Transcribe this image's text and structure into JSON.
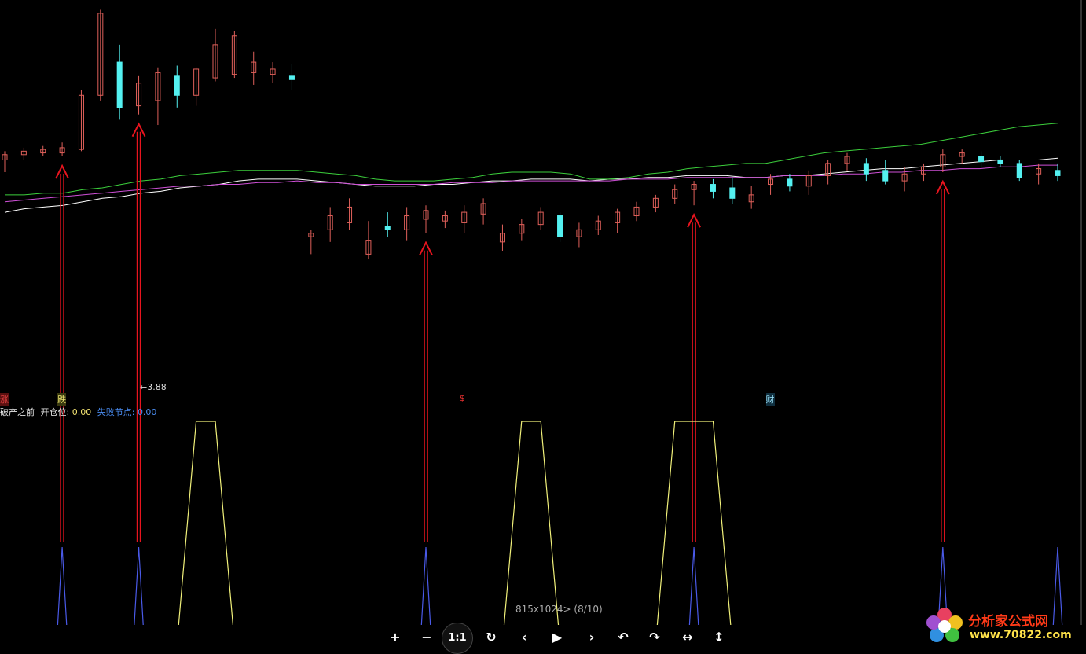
{
  "colors": {
    "up": "#e0605a",
    "down": "#54f1f1",
    "ma_white": "#ffffff",
    "ma_green": "#3ccf3c",
    "ma_magenta": "#d050d8",
    "arrow": "#e8141e",
    "osc_yellow": "#f0f07a",
    "osc_blue": "#4a5ae8",
    "info_white": "#e8e8e8",
    "info_yellow": "#f0e070",
    "info_blue": "#4a8cf0"
  },
  "price_annotation": "←3.88",
  "signal_labels": [
    {
      "text": "涨",
      "x": 0,
      "color": "#e04040",
      "bg": "#5a1010"
    },
    {
      "text": "跌",
      "x": 3,
      "color": "#e8e070",
      "bg": "#3a3a10"
    },
    {
      "text": "$",
      "x": 24,
      "color": "#e83030",
      "bg": ""
    },
    {
      "text": "财",
      "x": 40,
      "color": "#a0e8ff",
      "bg": "#103040"
    }
  ],
  "info_line": {
    "title": "破产之前",
    "open_label": "开仓位:",
    "open_value": "0.00",
    "fail_label": "失败节点:",
    "fail_value": "0.00"
  },
  "viewer": {
    "status": "815x1024> (8/10)",
    "buttons": [
      "+",
      "−",
      "1:1",
      "↻",
      "‹",
      "▶",
      "›",
      "↶",
      "↷",
      "↔",
      "↕"
    ]
  },
  "watermark": {
    "text": "分析家公式网",
    "url": "www.70822.com"
  },
  "chart_data": {
    "type": "candlestick",
    "ylim": [
      3.4,
      5.3
    ],
    "candles": [
      {
        "o": 4.42,
        "h": 4.47,
        "l": 4.35,
        "c": 4.45
      },
      {
        "o": 4.45,
        "h": 4.49,
        "l": 4.42,
        "c": 4.47
      },
      {
        "o": 4.46,
        "h": 4.5,
        "l": 4.44,
        "c": 4.48
      },
      {
        "o": 4.46,
        "h": 4.52,
        "l": 4.44,
        "c": 4.49
      },
      {
        "o": 4.48,
        "h": 4.82,
        "l": 4.47,
        "c": 4.79
      },
      {
        "o": 4.79,
        "h": 5.28,
        "l": 4.76,
        "c": 5.26
      },
      {
        "o": 4.98,
        "h": 5.08,
        "l": 4.65,
        "c": 4.72
      },
      {
        "o": 4.73,
        "h": 4.9,
        "l": 4.68,
        "c": 4.86
      },
      {
        "o": 4.76,
        "h": 4.95,
        "l": 4.62,
        "c": 4.92
      },
      {
        "o": 4.9,
        "h": 4.96,
        "l": 4.72,
        "c": 4.79
      },
      {
        "o": 4.79,
        "h": 4.95,
        "l": 4.73,
        "c": 4.94
      },
      {
        "o": 4.89,
        "h": 5.17,
        "l": 4.87,
        "c": 5.08
      },
      {
        "o": 4.91,
        "h": 5.16,
        "l": 4.89,
        "c": 5.13
      },
      {
        "o": 4.92,
        "h": 5.04,
        "l": 4.85,
        "c": 4.98
      },
      {
        "o": 4.91,
        "h": 4.98,
        "l": 4.86,
        "c": 4.94
      },
      {
        "o": 4.9,
        "h": 4.97,
        "l": 4.82,
        "c": 4.88
      },
      {
        "o": 3.98,
        "h": 4.02,
        "l": 3.88,
        "c": 4.0
      },
      {
        "o": 4.02,
        "h": 4.15,
        "l": 3.95,
        "c": 4.1
      },
      {
        "o": 4.06,
        "h": 4.2,
        "l": 4.02,
        "c": 4.15
      },
      {
        "o": 3.88,
        "h": 4.07,
        "l": 3.85,
        "c": 3.96
      },
      {
        "o": 4.04,
        "h": 4.12,
        "l": 3.98,
        "c": 4.02
      },
      {
        "o": 4.02,
        "h": 4.15,
        "l": 3.96,
        "c": 4.1
      },
      {
        "o": 4.08,
        "h": 4.16,
        "l": 4.0,
        "c": 4.13
      },
      {
        "o": 4.07,
        "h": 4.13,
        "l": 4.03,
        "c": 4.1
      },
      {
        "o": 4.06,
        "h": 4.16,
        "l": 4.0,
        "c": 4.12
      },
      {
        "o": 4.11,
        "h": 4.2,
        "l": 4.05,
        "c": 4.17
      },
      {
        "o": 3.95,
        "h": 4.05,
        "l": 3.9,
        "c": 4.0
      },
      {
        "o": 4.0,
        "h": 4.08,
        "l": 3.96,
        "c": 4.05
      },
      {
        "o": 4.05,
        "h": 4.15,
        "l": 4.02,
        "c": 4.12
      },
      {
        "o": 4.1,
        "h": 4.12,
        "l": 3.95,
        "c": 3.98
      },
      {
        "o": 3.98,
        "h": 4.06,
        "l": 3.92,
        "c": 4.02
      },
      {
        "o": 4.02,
        "h": 4.1,
        "l": 3.99,
        "c": 4.07
      },
      {
        "o": 4.06,
        "h": 4.14,
        "l": 4.0,
        "c": 4.12
      },
      {
        "o": 4.1,
        "h": 4.18,
        "l": 4.07,
        "c": 4.15
      },
      {
        "o": 4.15,
        "h": 4.22,
        "l": 4.12,
        "c": 4.2
      },
      {
        "o": 4.2,
        "h": 4.28,
        "l": 4.17,
        "c": 4.25
      },
      {
        "o": 4.25,
        "h": 4.3,
        "l": 4.16,
        "c": 4.28
      },
      {
        "o": 4.28,
        "h": 4.31,
        "l": 4.2,
        "c": 4.24
      },
      {
        "o": 4.26,
        "h": 4.32,
        "l": 4.17,
        "c": 4.2
      },
      {
        "o": 4.18,
        "h": 4.27,
        "l": 4.14,
        "c": 4.22
      },
      {
        "o": 4.28,
        "h": 4.34,
        "l": 4.22,
        "c": 4.31
      },
      {
        "o": 4.31,
        "h": 4.34,
        "l": 4.24,
        "c": 4.27
      },
      {
        "o": 4.27,
        "h": 4.36,
        "l": 4.22,
        "c": 4.33
      },
      {
        "o": 4.33,
        "h": 4.42,
        "l": 4.28,
        "c": 4.4
      },
      {
        "o": 4.4,
        "h": 4.46,
        "l": 4.36,
        "c": 4.44
      },
      {
        "o": 4.4,
        "h": 4.43,
        "l": 4.3,
        "c": 4.34
      },
      {
        "o": 4.36,
        "h": 4.42,
        "l": 4.28,
        "c": 4.3
      },
      {
        "o": 4.3,
        "h": 4.38,
        "l": 4.24,
        "c": 4.34
      },
      {
        "o": 4.34,
        "h": 4.4,
        "l": 4.3,
        "c": 4.38
      },
      {
        "o": 4.38,
        "h": 4.48,
        "l": 4.35,
        "c": 4.45
      },
      {
        "o": 4.44,
        "h": 4.48,
        "l": 4.4,
        "c": 4.46
      },
      {
        "o": 4.44,
        "h": 4.47,
        "l": 4.38,
        "c": 4.41
      },
      {
        "o": 4.42,
        "h": 4.44,
        "l": 4.38,
        "c": 4.4
      },
      {
        "o": 4.4,
        "h": 4.42,
        "l": 4.3,
        "c": 4.32
      },
      {
        "o": 4.34,
        "h": 4.4,
        "l": 4.28,
        "c": 4.37
      },
      {
        "o": 4.36,
        "h": 4.4,
        "l": 4.3,
        "c": 4.33
      }
    ],
    "ma_white": [
      4.12,
      4.14,
      4.15,
      4.16,
      4.18,
      4.2,
      4.21,
      4.23,
      4.24,
      4.26,
      4.27,
      4.28,
      4.3,
      4.31,
      4.31,
      4.31,
      4.3,
      4.29,
      4.28,
      4.27,
      4.27,
      4.27,
      4.28,
      4.28,
      4.29,
      4.3,
      4.3,
      4.31,
      4.31,
      4.31,
      4.3,
      4.31,
      4.31,
      4.32,
      4.32,
      4.33,
      4.33,
      4.33,
      4.32,
      4.32,
      4.33,
      4.33,
      4.34,
      4.35,
      4.36,
      4.37,
      4.37,
      4.38,
      4.39,
      4.4,
      4.41,
      4.42,
      4.42,
      4.42,
      4.43
    ],
    "ma_green": [
      4.22,
      4.22,
      4.23,
      4.23,
      4.25,
      4.26,
      4.28,
      4.3,
      4.31,
      4.33,
      4.34,
      4.35,
      4.36,
      4.36,
      4.36,
      4.36,
      4.35,
      4.34,
      4.33,
      4.31,
      4.3,
      4.3,
      4.3,
      4.31,
      4.32,
      4.34,
      4.35,
      4.35,
      4.35,
      4.34,
      4.31,
      4.31,
      4.32,
      4.34,
      4.35,
      4.37,
      4.38,
      4.39,
      4.4,
      4.4,
      4.42,
      4.44,
      4.46,
      4.47,
      4.48,
      4.49,
      4.5,
      4.51,
      4.53,
      4.55,
      4.57,
      4.59,
      4.61,
      4.62,
      4.63
    ],
    "ma_magenta": [
      4.18,
      4.19,
      4.2,
      4.21,
      4.22,
      4.23,
      4.24,
      4.25,
      4.26,
      4.27,
      4.27,
      4.28,
      4.28,
      4.29,
      4.29,
      4.3,
      4.29,
      4.29,
      4.28,
      4.28,
      4.28,
      4.28,
      4.28,
      4.29,
      4.29,
      4.29,
      4.3,
      4.3,
      4.3,
      4.3,
      4.3,
      4.3,
      4.31,
      4.31,
      4.31,
      4.32,
      4.32,
      4.32,
      4.32,
      4.32,
      4.33,
      4.33,
      4.33,
      4.34,
      4.34,
      4.35,
      4.35,
      4.36,
      4.36,
      4.37,
      4.37,
      4.38,
      4.38,
      4.39,
      4.39
    ],
    "arrows": [
      3,
      7,
      22,
      36,
      49
    ],
    "osc_yellow": [
      {
        "start": 9,
        "peak_start": 10,
        "peak_end": 11,
        "end": 12
      },
      {
        "start": 26,
        "peak_start": 27,
        "peak_end": 28,
        "end": 29
      },
      {
        "start": 34,
        "peak_start": 35,
        "peak_end": 37,
        "end": 38
      }
    ],
    "osc_blue": [
      3,
      7,
      22,
      36,
      49,
      56
    ]
  }
}
